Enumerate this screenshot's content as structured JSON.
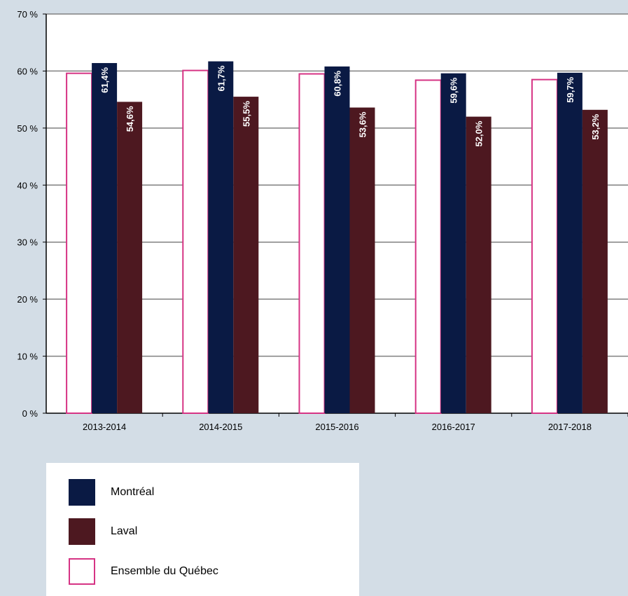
{
  "chart_data": {
    "type": "bar",
    "categories": [
      "2013-2014",
      "2014-2015",
      "2015-2016",
      "2016-2017",
      "2017-2018"
    ],
    "series": [
      {
        "name": "Ensemble du Québec",
        "values": [
          59.6,
          60.1,
          59.5,
          58.4,
          58.5
        ],
        "color": "#ffffff",
        "stroke": "#d63384",
        "labels": [
          "",
          "",
          "",
          "",
          ""
        ]
      },
      {
        "name": "Montréal",
        "values": [
          61.4,
          61.7,
          60.8,
          59.6,
          59.7
        ],
        "color": "#0a1a44",
        "labels": [
          "61,4%",
          "61,7%",
          "60,8%",
          "59,6%",
          "59,7%"
        ]
      },
      {
        "name": "Laval",
        "values": [
          54.6,
          55.5,
          53.6,
          52.0,
          53.2
        ],
        "color": "#4d1820",
        "labels": [
          "54,6%",
          "55,5%",
          "53,6%",
          "52,0%",
          "53,2%"
        ]
      }
    ],
    "y_ticks": [
      "0 %",
      "10 %",
      "20 %",
      "30 %",
      "40 %",
      "50 %",
      "60 %",
      "70 %"
    ],
    "ylim": [
      0,
      70
    ],
    "grid": true,
    "legend_position": "bottom-left"
  },
  "legend": {
    "items": [
      {
        "label": "Montréal",
        "color": "#0a1a44"
      },
      {
        "label": "Laval",
        "color": "#4d1820"
      },
      {
        "label": "Ensemble du Québec",
        "color": "#ffffff",
        "border": "#d63384"
      }
    ]
  }
}
